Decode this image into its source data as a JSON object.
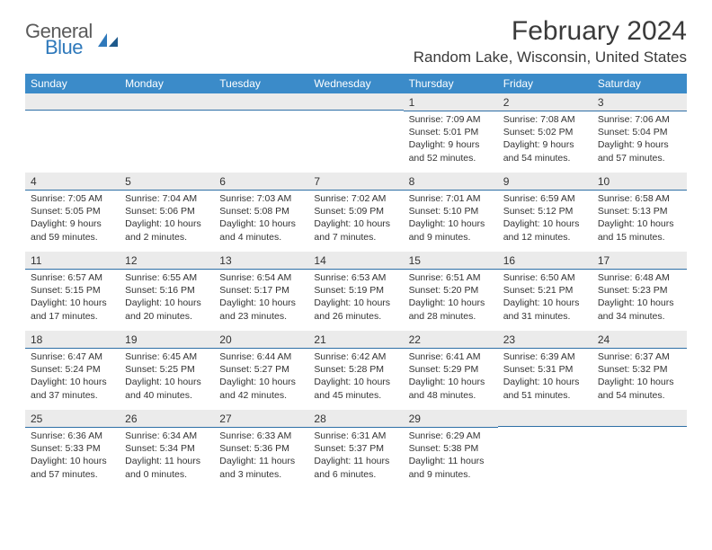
{
  "brand": {
    "general": "General",
    "blue": "Blue"
  },
  "title": "February 2024",
  "location": "Random Lake, Wisconsin, United States",
  "colors": {
    "header_bg": "#3b8bc9",
    "header_text": "#ffffff",
    "daynum_bg": "#ebebeb",
    "daynum_border": "#2e6fa6",
    "text": "#333333",
    "brand_gray": "#5a5a5a",
    "brand_blue": "#2f79bb"
  },
  "weekdays": [
    "Sunday",
    "Monday",
    "Tuesday",
    "Wednesday",
    "Thursday",
    "Friday",
    "Saturday"
  ],
  "weeks": [
    [
      null,
      null,
      null,
      null,
      {
        "n": "1",
        "sunrise": "Sunrise: 7:09 AM",
        "sunset": "Sunset: 5:01 PM",
        "daylight": "Daylight: 9 hours and 52 minutes."
      },
      {
        "n": "2",
        "sunrise": "Sunrise: 7:08 AM",
        "sunset": "Sunset: 5:02 PM",
        "daylight": "Daylight: 9 hours and 54 minutes."
      },
      {
        "n": "3",
        "sunrise": "Sunrise: 7:06 AM",
        "sunset": "Sunset: 5:04 PM",
        "daylight": "Daylight: 9 hours and 57 minutes."
      }
    ],
    [
      {
        "n": "4",
        "sunrise": "Sunrise: 7:05 AM",
        "sunset": "Sunset: 5:05 PM",
        "daylight": "Daylight: 9 hours and 59 minutes."
      },
      {
        "n": "5",
        "sunrise": "Sunrise: 7:04 AM",
        "sunset": "Sunset: 5:06 PM",
        "daylight": "Daylight: 10 hours and 2 minutes."
      },
      {
        "n": "6",
        "sunrise": "Sunrise: 7:03 AM",
        "sunset": "Sunset: 5:08 PM",
        "daylight": "Daylight: 10 hours and 4 minutes."
      },
      {
        "n": "7",
        "sunrise": "Sunrise: 7:02 AM",
        "sunset": "Sunset: 5:09 PM",
        "daylight": "Daylight: 10 hours and 7 minutes."
      },
      {
        "n": "8",
        "sunrise": "Sunrise: 7:01 AM",
        "sunset": "Sunset: 5:10 PM",
        "daylight": "Daylight: 10 hours and 9 minutes."
      },
      {
        "n": "9",
        "sunrise": "Sunrise: 6:59 AM",
        "sunset": "Sunset: 5:12 PM",
        "daylight": "Daylight: 10 hours and 12 minutes."
      },
      {
        "n": "10",
        "sunrise": "Sunrise: 6:58 AM",
        "sunset": "Sunset: 5:13 PM",
        "daylight": "Daylight: 10 hours and 15 minutes."
      }
    ],
    [
      {
        "n": "11",
        "sunrise": "Sunrise: 6:57 AM",
        "sunset": "Sunset: 5:15 PM",
        "daylight": "Daylight: 10 hours and 17 minutes."
      },
      {
        "n": "12",
        "sunrise": "Sunrise: 6:55 AM",
        "sunset": "Sunset: 5:16 PM",
        "daylight": "Daylight: 10 hours and 20 minutes."
      },
      {
        "n": "13",
        "sunrise": "Sunrise: 6:54 AM",
        "sunset": "Sunset: 5:17 PM",
        "daylight": "Daylight: 10 hours and 23 minutes."
      },
      {
        "n": "14",
        "sunrise": "Sunrise: 6:53 AM",
        "sunset": "Sunset: 5:19 PM",
        "daylight": "Daylight: 10 hours and 26 minutes."
      },
      {
        "n": "15",
        "sunrise": "Sunrise: 6:51 AM",
        "sunset": "Sunset: 5:20 PM",
        "daylight": "Daylight: 10 hours and 28 minutes."
      },
      {
        "n": "16",
        "sunrise": "Sunrise: 6:50 AM",
        "sunset": "Sunset: 5:21 PM",
        "daylight": "Daylight: 10 hours and 31 minutes."
      },
      {
        "n": "17",
        "sunrise": "Sunrise: 6:48 AM",
        "sunset": "Sunset: 5:23 PM",
        "daylight": "Daylight: 10 hours and 34 minutes."
      }
    ],
    [
      {
        "n": "18",
        "sunrise": "Sunrise: 6:47 AM",
        "sunset": "Sunset: 5:24 PM",
        "daylight": "Daylight: 10 hours and 37 minutes."
      },
      {
        "n": "19",
        "sunrise": "Sunrise: 6:45 AM",
        "sunset": "Sunset: 5:25 PM",
        "daylight": "Daylight: 10 hours and 40 minutes."
      },
      {
        "n": "20",
        "sunrise": "Sunrise: 6:44 AM",
        "sunset": "Sunset: 5:27 PM",
        "daylight": "Daylight: 10 hours and 42 minutes."
      },
      {
        "n": "21",
        "sunrise": "Sunrise: 6:42 AM",
        "sunset": "Sunset: 5:28 PM",
        "daylight": "Daylight: 10 hours and 45 minutes."
      },
      {
        "n": "22",
        "sunrise": "Sunrise: 6:41 AM",
        "sunset": "Sunset: 5:29 PM",
        "daylight": "Daylight: 10 hours and 48 minutes."
      },
      {
        "n": "23",
        "sunrise": "Sunrise: 6:39 AM",
        "sunset": "Sunset: 5:31 PM",
        "daylight": "Daylight: 10 hours and 51 minutes."
      },
      {
        "n": "24",
        "sunrise": "Sunrise: 6:37 AM",
        "sunset": "Sunset: 5:32 PM",
        "daylight": "Daylight: 10 hours and 54 minutes."
      }
    ],
    [
      {
        "n": "25",
        "sunrise": "Sunrise: 6:36 AM",
        "sunset": "Sunset: 5:33 PM",
        "daylight": "Daylight: 10 hours and 57 minutes."
      },
      {
        "n": "26",
        "sunrise": "Sunrise: 6:34 AM",
        "sunset": "Sunset: 5:34 PM",
        "daylight": "Daylight: 11 hours and 0 minutes."
      },
      {
        "n": "27",
        "sunrise": "Sunrise: 6:33 AM",
        "sunset": "Sunset: 5:36 PM",
        "daylight": "Daylight: 11 hours and 3 minutes."
      },
      {
        "n": "28",
        "sunrise": "Sunrise: 6:31 AM",
        "sunset": "Sunset: 5:37 PM",
        "daylight": "Daylight: 11 hours and 6 minutes."
      },
      {
        "n": "29",
        "sunrise": "Sunrise: 6:29 AM",
        "sunset": "Sunset: 5:38 PM",
        "daylight": "Daylight: 11 hours and 9 minutes."
      },
      null,
      null
    ]
  ]
}
